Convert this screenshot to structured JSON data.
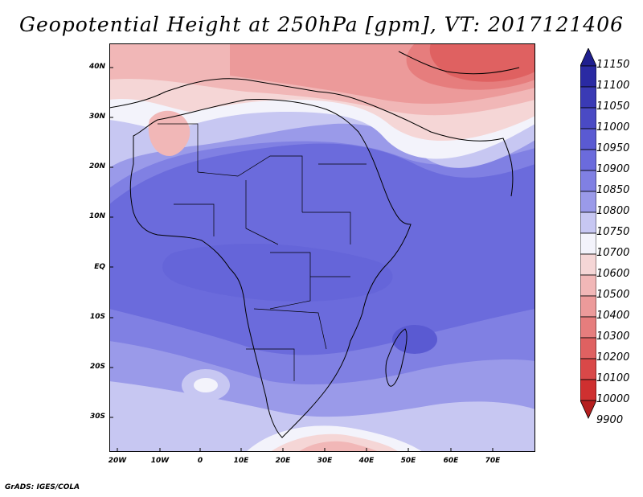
{
  "title": "Geopotential Height at 250hPa [gpm], VT: 2017121406",
  "footer": "GrADS: IGES/COLA",
  "map": {
    "lat_labels": [
      "40N",
      "30N",
      "20N",
      "10N",
      "EQ",
      "10S",
      "20S",
      "30S"
    ],
    "lon_labels": [
      "20W",
      "10W",
      "0",
      "10E",
      "20E",
      "30E",
      "40E",
      "50E",
      "60E",
      "70E"
    ]
  },
  "colorbar": {
    "levels": [
      "11150",
      "11100",
      "11050",
      "11000",
      "10950",
      "10900",
      "10850",
      "10800",
      "10750",
      "10700",
      "10600",
      "10500",
      "10400",
      "10300",
      "10200",
      "10100",
      "10000",
      "9900"
    ],
    "colors": [
      "#1f1f8f",
      "#2a2aa3",
      "#3a3ab5",
      "#4a4ac4",
      "#5a5ad2",
      "#6b6bdc",
      "#8080e3",
      "#9a9ae9",
      "#c7c7f2",
      "#f3f3fb",
      "#f5d6d6",
      "#f1b7b7",
      "#ec9a9a",
      "#e67d7d",
      "#df6161",
      "#d94848",
      "#cf3030",
      "#b51f1f"
    ]
  }
}
